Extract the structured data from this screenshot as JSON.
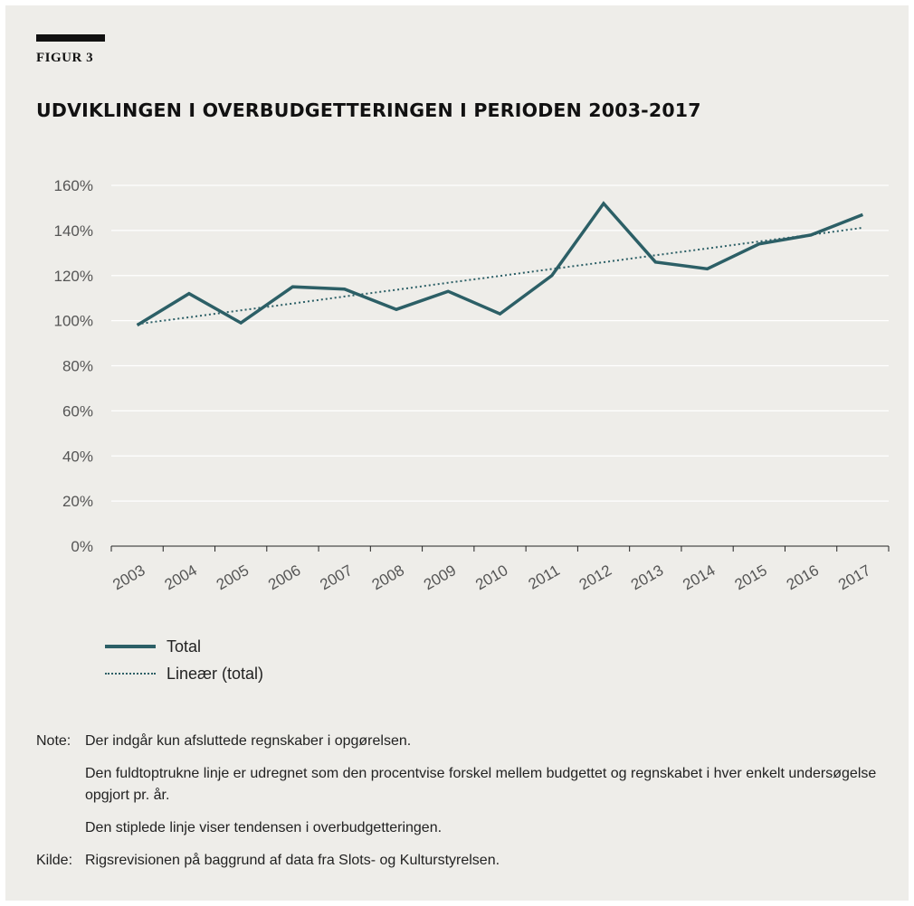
{
  "figure": {
    "label": "FIGUR 3",
    "title": "UDVIKLINGEN I OVERBUDGETTERINGEN I PERIODEN 2003-2017"
  },
  "colors": {
    "background": "#eeede9",
    "series": "#2c5f66",
    "gridline": "#ffffff",
    "text": "#222222"
  },
  "chart_data": {
    "type": "line",
    "categories": [
      "2003",
      "2004",
      "2005",
      "2006",
      "2007",
      "2008",
      "2009",
      "2010",
      "2011",
      "2012",
      "2013",
      "2014",
      "2015",
      "2016",
      "2017"
    ],
    "series": [
      {
        "name": "Total",
        "style": "solid",
        "values": [
          98,
          112,
          99,
          115,
          114,
          105,
          113,
          103,
          120,
          152,
          126,
          123,
          134,
          138,
          147
        ]
      },
      {
        "name": "Lineær (total)",
        "style": "dotted",
        "values": [
          98.5,
          101.5,
          104.6,
          107.6,
          110.7,
          113.7,
          116.8,
          119.8,
          122.9,
          125.9,
          129.0,
          132.0,
          135.1,
          138.1,
          141.2
        ]
      }
    ],
    "ylim": [
      0,
      160
    ],
    "yticks": [
      0,
      20,
      40,
      60,
      80,
      100,
      120,
      140,
      160
    ],
    "ytick_labels": [
      "0%",
      "20%",
      "40%",
      "60%",
      "80%",
      "100%",
      "120%",
      "140%",
      "160%"
    ],
    "grid": true,
    "legend": "bottom-left"
  },
  "legend": {
    "items": [
      "Total",
      "Lineær (total)"
    ]
  },
  "notes": {
    "note_key": "Note:",
    "note_lines": [
      "Der indgår kun afsluttede regnskaber i opgørelsen.",
      "Den fuldtoptrukne linje er udregnet som den procentvise forskel mellem budgettet og regnskabet i hver enkelt undersøgelse opgjort pr. år.",
      "Den stiplede linje viser tendensen i overbudgetteringen."
    ],
    "source_key": "Kilde:",
    "source_text": "Rigsrevisionen på baggrund af data fra Slots- og Kulturstyrelsen."
  }
}
